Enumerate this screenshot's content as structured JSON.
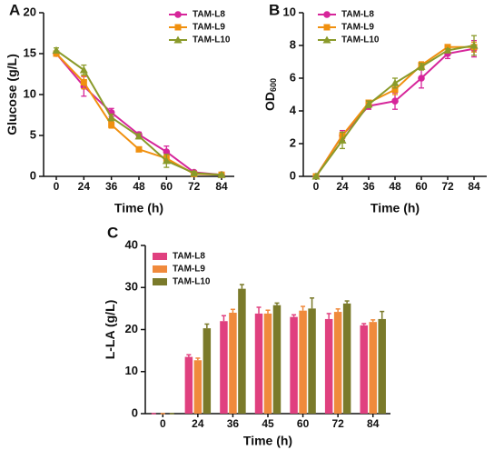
{
  "chart_data": [
    {
      "type": "line",
      "panel_label": "A",
      "y_label": "Glucose (g/L)",
      "x_label": "Time (h)",
      "categories": [
        "0",
        "24",
        "36",
        "48",
        "60",
        "72",
        "84"
      ],
      "ylim": [
        0,
        20
      ],
      "yticks": [
        0,
        5,
        10,
        15,
        20
      ],
      "series": [
        {
          "name": "TAM-L8",
          "color": "#d6259a",
          "marker": "circle",
          "values": [
            15,
            11,
            7.8,
            5.1,
            3.0,
            0.5,
            0.2
          ],
          "errors": [
            0.2,
            1.2,
            0.5,
            0.3,
            0.7,
            0.2,
            0.1
          ]
        },
        {
          "name": "TAM-L9",
          "color": "#f0900f",
          "marker": "square",
          "values": [
            15,
            11.5,
            6.3,
            3.3,
            2.2,
            0.3,
            0.2
          ],
          "errors": [
            0.2,
            0.8,
            0.4,
            0.2,
            0.4,
            0.2,
            0.1
          ]
        },
        {
          "name": "TAM-L10",
          "color": "#8a9a2a",
          "marker": "triangle",
          "values": [
            15.4,
            13.0,
            7.2,
            4.9,
            1.9,
            0.4,
            0.2
          ],
          "errors": [
            0.3,
            0.6,
            0.4,
            0.3,
            0.8,
            0.2,
            0.1
          ]
        }
      ]
    },
    {
      "type": "line",
      "panel_label": "B",
      "y_label": "OD",
      "y_label_sub": "600",
      "x_label": "Time (h)",
      "categories": [
        "0",
        "24",
        "36",
        "48",
        "60",
        "72",
        "84"
      ],
      "ylim": [
        0,
        10
      ],
      "yticks": [
        0,
        2,
        4,
        6,
        8,
        10
      ],
      "series": [
        {
          "name": "TAM-L8",
          "color": "#d6259a",
          "marker": "circle",
          "values": [
            0,
            2.5,
            4.3,
            4.6,
            6.0,
            7.5,
            7.8
          ],
          "errors": [
            0,
            0.3,
            0.2,
            0.5,
            0.6,
            0.3,
            0.5
          ]
        },
        {
          "name": "TAM-L9",
          "color": "#f0900f",
          "marker": "square",
          "values": [
            0,
            2.5,
            4.5,
            5.3,
            6.8,
            7.9,
            7.9
          ],
          "errors": [
            0,
            0.2,
            0.1,
            0.3,
            0.2,
            0.1,
            0.3
          ]
        },
        {
          "name": "TAM-L10",
          "color": "#8a9a2a",
          "marker": "triangle",
          "values": [
            0,
            2.2,
            4.4,
            5.7,
            6.7,
            7.7,
            8.0
          ],
          "errors": [
            0,
            0.5,
            0.2,
            0.3,
            0.2,
            0.1,
            0.6
          ]
        }
      ]
    },
    {
      "type": "bar",
      "panel_label": "C",
      "y_label": "L-LA (g/L)",
      "x_label": "Time (h)",
      "categories": [
        "0",
        "24",
        "36",
        "45",
        "60",
        "72",
        "84"
      ],
      "ylim": [
        0,
        40
      ],
      "yticks": [
        0,
        10,
        20,
        30,
        40
      ],
      "series": [
        {
          "name": "TAM-L8",
          "color": "#e0407f",
          "values": [
            0,
            13.5,
            22,
            23.8,
            23,
            22.5,
            21
          ],
          "errors": [
            0,
            0.5,
            1.3,
            1.5,
            0.5,
            1.3,
            0.4
          ]
        },
        {
          "name": "TAM-L9",
          "color": "#f08a3c",
          "values": [
            0,
            12.7,
            24,
            23.8,
            24.5,
            24.2,
            21.8
          ],
          "errors": [
            0,
            0.5,
            0.8,
            0.8,
            1.0,
            0.7,
            0.5
          ]
        },
        {
          "name": "TAM-L10",
          "color": "#7a7a2a",
          "values": [
            0,
            20.3,
            29.7,
            25.8,
            25,
            26.2,
            22.5
          ],
          "errors": [
            0,
            1.0,
            1.0,
            0.5,
            2.5,
            0.6,
            1.8
          ]
        }
      ]
    }
  ]
}
